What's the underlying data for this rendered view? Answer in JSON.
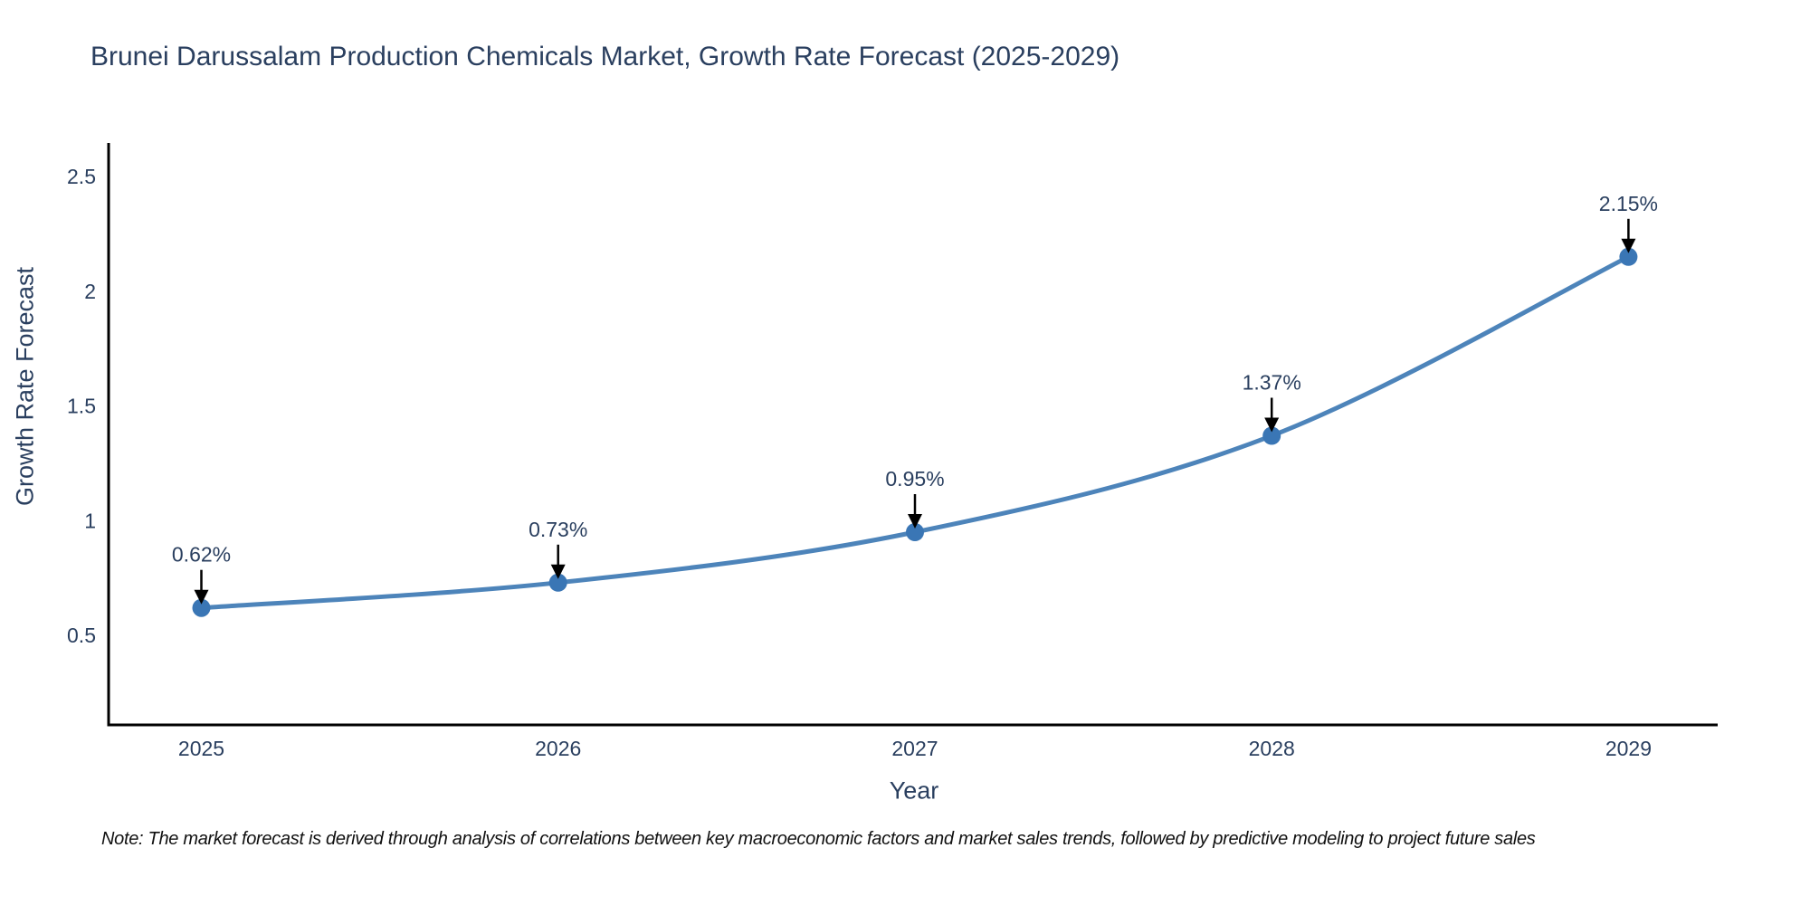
{
  "chart_data": {
    "type": "line",
    "title": "Brunei Darussalam Production Chemicals Market, Growth Rate Forecast (2025-2029)",
    "xlabel": "Year",
    "ylabel": "Growth Rate Forecast",
    "x": [
      2025,
      2026,
      2027,
      2028,
      2029
    ],
    "values": [
      0.62,
      0.73,
      0.95,
      1.37,
      2.15
    ],
    "point_labels": [
      "0.62%",
      "0.73%",
      "0.95%",
      "1.37%",
      "2.15%"
    ],
    "yticks": [
      0.5,
      1,
      1.5,
      2,
      2.5
    ],
    "ylim": [
      0.11,
      2.646
    ],
    "xlim": [
      2024.74,
      2029.25
    ],
    "grid": false,
    "legend": false,
    "line_shape": "spline",
    "note": "Note: The market forecast is derived through analysis of correlations between key macroeconomic factors and market sales trends, followed by predictive modeling to project future sales",
    "colors": {
      "line": "#4d84ba",
      "marker": "#3a76b5",
      "axis": "#000000",
      "text": "#2a3f5f",
      "annotation": "#2a3f5f",
      "arrow": "#000000",
      "background": "#ffffff"
    }
  }
}
